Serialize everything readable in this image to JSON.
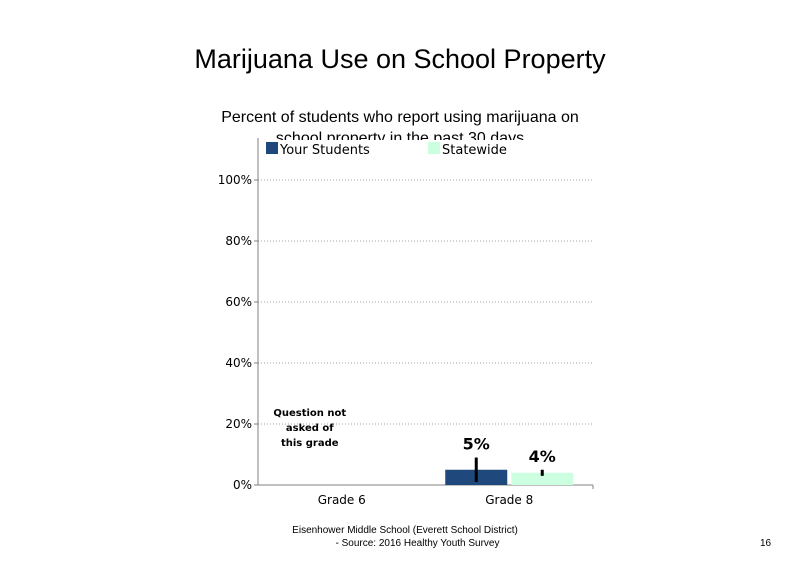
{
  "slide": {
    "title": "Marijuana Use on School Property",
    "subtitle": "Percent of students who report using marijuana on school property in the past 30 days",
    "footer_line1": "Eisenhower Middle School (Everett School District)",
    "footer_line2": "- Source: 2016 Healthy Youth Survey",
    "page_number": "16"
  },
  "chart_data": {
    "type": "bar",
    "title": "Marijuana Use on School Property",
    "subtitle": "Percent of students who report using marijuana on school property in the past 30 days",
    "categories": [
      "Grade 6",
      "Grade 8"
    ],
    "series": [
      {
        "name": "Your Students",
        "color": "#1f497d",
        "values": [
          null,
          5
        ],
        "error_low": [
          null,
          1
        ],
        "error_high": [
          null,
          9
        ],
        "labels": [
          "",
          "5%"
        ]
      },
      {
        "name": "Statewide",
        "color": "#ccffe0",
        "values": [
          null,
          4
        ],
        "error_low": [
          null,
          3
        ],
        "error_high": [
          null,
          5
        ],
        "labels": [
          "",
          "4%"
        ]
      }
    ],
    "ylim": [
      0,
      100
    ],
    "yticks": [
      "0%",
      "20%",
      "40%",
      "60%",
      "80%",
      "100%"
    ],
    "ytick_values": [
      0,
      20,
      40,
      60,
      80,
      100
    ],
    "gridlines": "dotted",
    "legend_position": "top",
    "annotations": [
      {
        "category": "Grade 6",
        "text": "Question not asked of this grade"
      }
    ]
  }
}
